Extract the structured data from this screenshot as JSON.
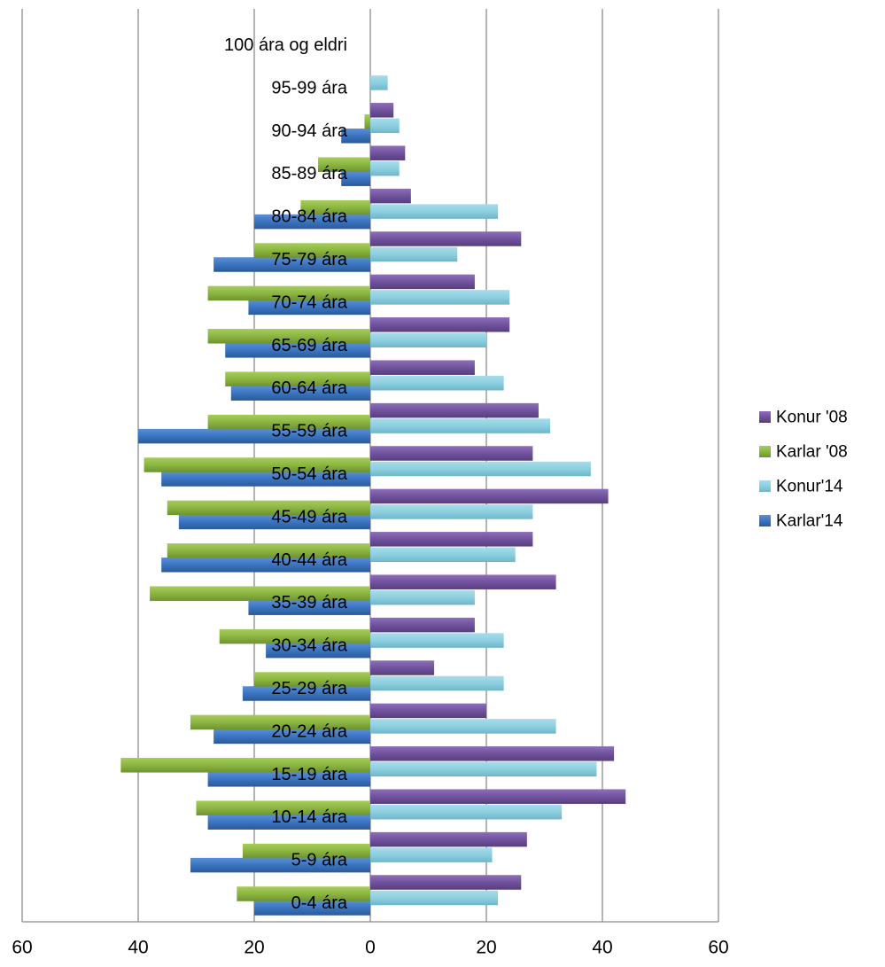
{
  "chart_data": {
    "type": "bar",
    "orientation": "horizontal",
    "title": "",
    "xlim": [
      -60,
      60
    ],
    "x_ticks": [
      -60,
      -40,
      -20,
      0,
      20,
      40,
      60
    ],
    "x_tick_labels": [
      "60",
      "40",
      "20",
      "0",
      "20",
      "40",
      "60"
    ],
    "grid": true,
    "legend_position": "right",
    "categories": [
      "0-4 ára",
      "5-9 ára",
      "10-14 ára",
      "15-19 ára",
      "20-24 ára",
      "25-29 ára",
      "30-34 ára",
      "35-39 ára",
      "40-44 ára",
      "45-49 ára",
      "50-54 ára",
      "55-59 ára",
      "60-64 ára",
      "65-69 ára",
      "70-74 ára",
      "75-79 ára",
      "80-84 ára",
      "85-89 ára",
      "90-94 ára",
      "95-99 ára",
      "100 ára og eldri"
    ],
    "series": [
      {
        "name": "Karlar'14",
        "color": "#3a74c0",
        "values": [
          -20,
          -31,
          -28,
          -28,
          -27,
          -22,
          -18,
          -21,
          -36,
          -33,
          -36,
          -40,
          -24,
          -25,
          -21,
          -27,
          -20,
          -5,
          -5,
          0,
          0
        ]
      },
      {
        "name": "Konur'14",
        "color": "#8ccfe0",
        "values": [
          22,
          21,
          33,
          39,
          32,
          23,
          23,
          18,
          25,
          28,
          38,
          31,
          23,
          20,
          24,
          15,
          22,
          5,
          5,
          3,
          0
        ]
      },
      {
        "name": "Karlar '08",
        "color": "#8bb640",
        "values": [
          -23,
          -22,
          -30,
          -43,
          -31,
          -20,
          -26,
          -38,
          -35,
          -35,
          -39,
          -28,
          -25,
          -28,
          -28,
          -20,
          -12,
          -9,
          -1,
          0,
          0
        ]
      },
      {
        "name": "Konur '08",
        "color": "#71529e",
        "values": [
          26,
          27,
          44,
          42,
          20,
          11,
          18,
          32,
          28,
          41,
          28,
          29,
          18,
          24,
          18,
          26,
          7,
          6,
          4,
          0,
          0
        ]
      }
    ],
    "legend_order": [
      "Konur '08",
      "Karlar '08",
      "Konur'14",
      "Karlar'14"
    ]
  }
}
